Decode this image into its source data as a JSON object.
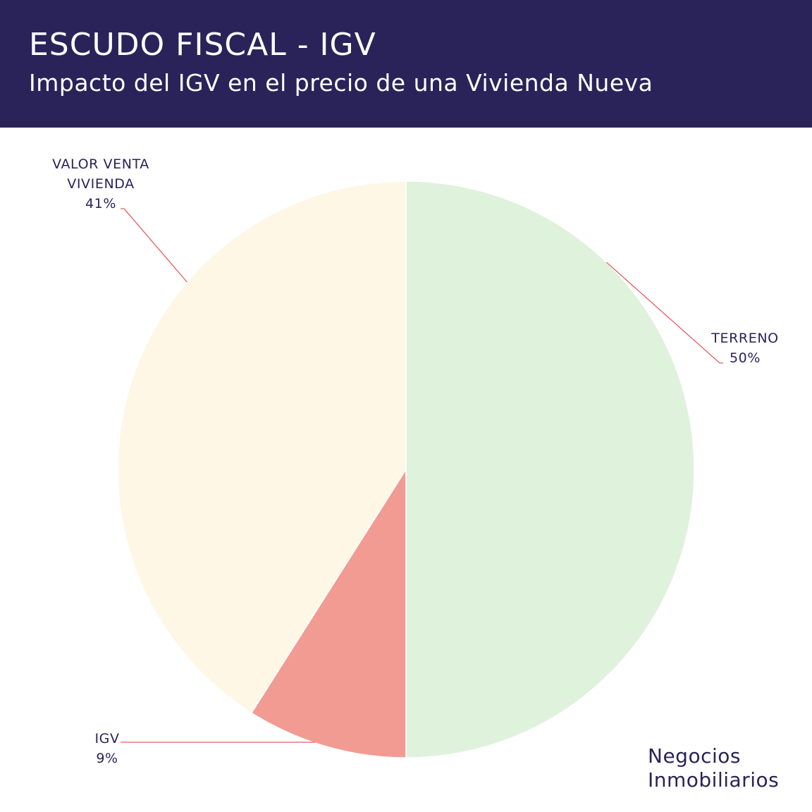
{
  "header": {
    "title": "ESCUDO FISCAL - IGV",
    "subtitle": "Impacto del IGV en el precio de una Vivienda Nueva",
    "background": "#2a2359"
  },
  "chart_data": {
    "type": "pie",
    "slices": [
      {
        "label_lines": [
          "TERRENO"
        ],
        "value": 50,
        "value_label": "50%",
        "color": "#dff2dc"
      },
      {
        "label_lines": [
          "IGV"
        ],
        "value": 9,
        "value_label": "9%",
        "color": "#f29b93"
      },
      {
        "label_lines": [
          "VALOR VENTA",
          "VIVIENDA"
        ],
        "value": 41,
        "value_label": "41%",
        "color": "#fef7e6"
      }
    ],
    "leader_line_color": "#e0343a",
    "label_color": "#2a2359"
  },
  "brand": {
    "line1": "Negocios",
    "line2": "Inmobiliarios"
  }
}
